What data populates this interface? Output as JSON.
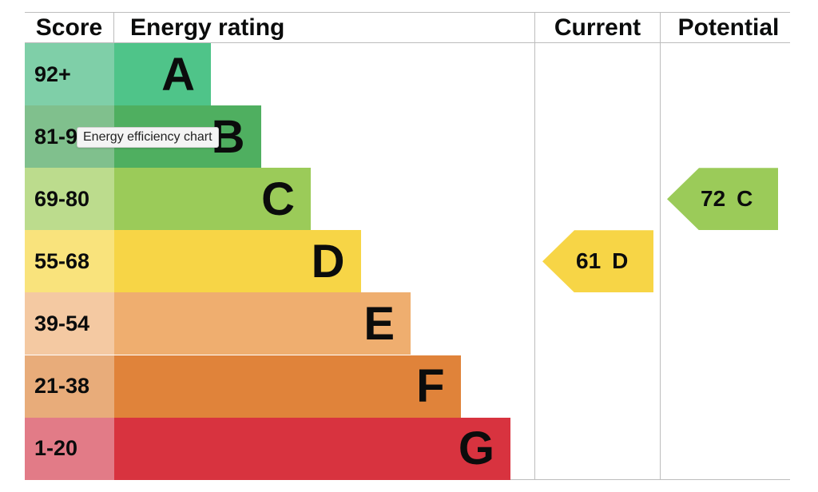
{
  "headers": {
    "score": "Score",
    "energy_rating": "Energy rating",
    "current": "Current",
    "potential": "Potential"
  },
  "tooltip": "Energy efficiency chart",
  "chart_data": {
    "type": "bar",
    "categories": [
      "A",
      "B",
      "C",
      "D",
      "E",
      "F",
      "G"
    ],
    "score_ranges": [
      "92+",
      "81-91",
      "69-80",
      "55-68",
      "39-54",
      "21-38",
      "1-20"
    ],
    "min_scores": [
      92,
      81,
      69,
      55,
      39,
      21,
      1
    ],
    "bar_colors": [
      "#4fc489",
      "#4faf60",
      "#9bcb59",
      "#f7d546",
      "#efae6f",
      "#e0833a",
      "#d8333f"
    ],
    "score_cell_colors": [
      "#7fcfa8",
      "#80c08d",
      "#bcdc8d",
      "#f9e37c",
      "#f4c9a2",
      "#e8ac7a",
      "#e27b87"
    ],
    "current": {
      "score": 61,
      "band": "D",
      "color": "#f7d546"
    },
    "potential": {
      "score": 72,
      "band": "C",
      "color": "#9bcb59"
    }
  }
}
